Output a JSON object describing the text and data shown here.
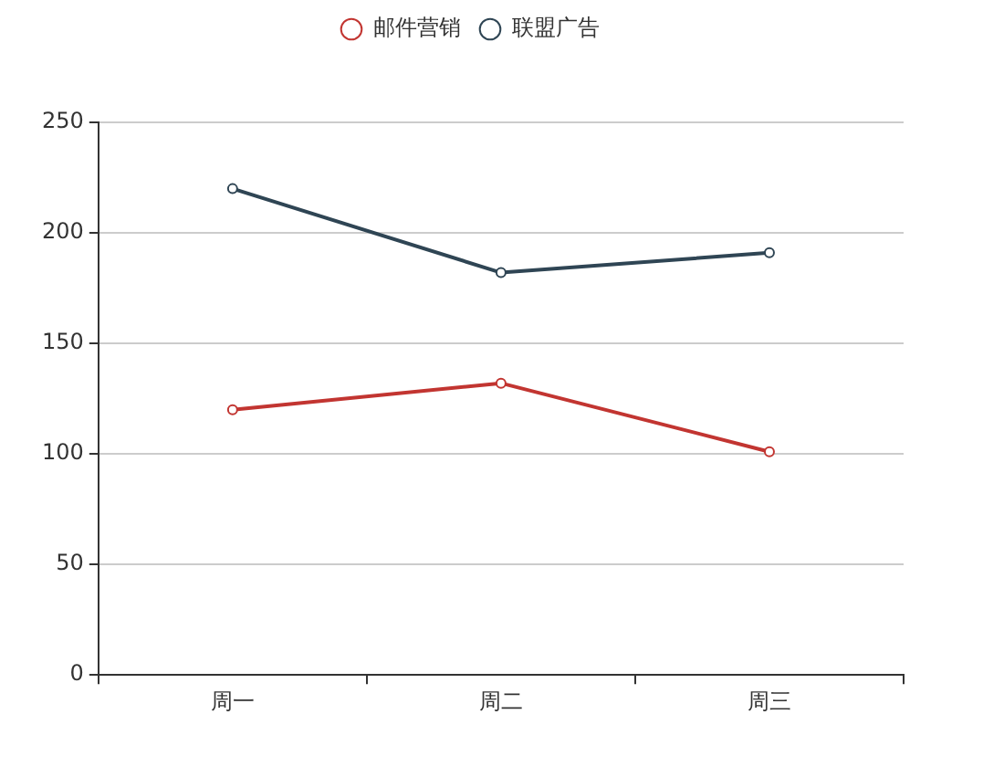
{
  "chart_data": {
    "type": "line",
    "categories": [
      "周一",
      "周二",
      "周三"
    ],
    "series": [
      {
        "name": "邮件营销",
        "color": "#c23531",
        "values": [
          120,
          132,
          101
        ]
      },
      {
        "name": "联盟广告",
        "color": "#2f4554",
        "values": [
          220,
          182,
          191
        ]
      }
    ],
    "ylim": [
      0,
      250
    ],
    "yticks": [
      0,
      50,
      100,
      150,
      200,
      250
    ],
    "grid": "y",
    "legend": "top",
    "marker": "circle",
    "line_style": "solid"
  }
}
